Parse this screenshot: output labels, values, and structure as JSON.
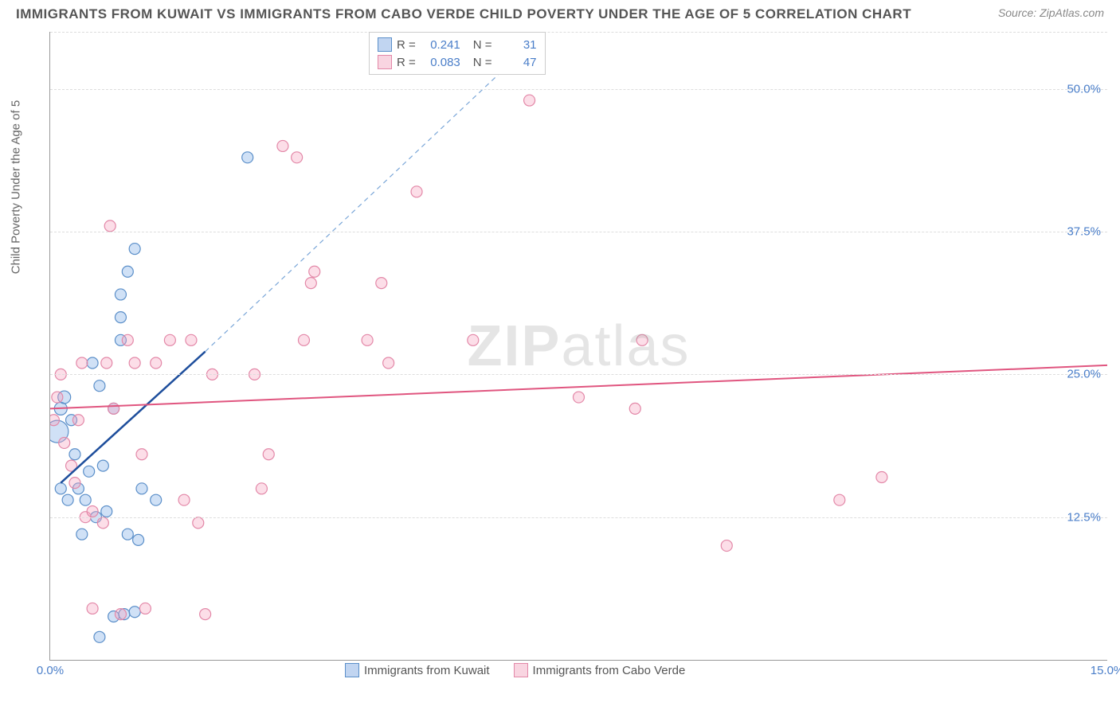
{
  "title": "IMMIGRANTS FROM KUWAIT VS IMMIGRANTS FROM CABO VERDE CHILD POVERTY UNDER THE AGE OF 5 CORRELATION CHART",
  "source": "Source: ZipAtlas.com",
  "y_axis_label": "Child Poverty Under the Age of 5",
  "watermark": {
    "bold": "ZIP",
    "light": "atlas"
  },
  "chart": {
    "type": "scatter",
    "x_range": [
      0,
      15
    ],
    "y_range": [
      0,
      55
    ],
    "x_ticks": [
      {
        "v": 0,
        "l": "0.0%"
      },
      {
        "v": 15,
        "l": "15.0%"
      }
    ],
    "y_ticks": [
      {
        "v": 12.5,
        "l": "12.5%"
      },
      {
        "v": 25,
        "l": "25.0%"
      },
      {
        "v": 37.5,
        "l": "37.5%"
      },
      {
        "v": 50,
        "l": "50.0%"
      }
    ],
    "grid_y": [
      12.5,
      25,
      37.5,
      50,
      55
    ],
    "series": [
      {
        "name": "Immigrants from Kuwait",
        "color_fill": "rgba(120,170,230,0.35)",
        "color_stroke": "#5b8fc9",
        "R": "0.241",
        "N": "31",
        "trend_solid": {
          "x1": 0.15,
          "y1": 15.5,
          "x2": 2.2,
          "y2": 27,
          "color": "#1e4e9c",
          "width": 2.5
        },
        "trend_dash": {
          "x1": 2.2,
          "y1": 27,
          "x2": 7.0,
          "y2": 55,
          "color": "#7aa6d8",
          "width": 1.2
        },
        "points": [
          {
            "x": 0.1,
            "y": 20,
            "r": 14
          },
          {
            "x": 0.15,
            "y": 22,
            "r": 8
          },
          {
            "x": 0.2,
            "y": 23,
            "r": 8
          },
          {
            "x": 0.3,
            "y": 21,
            "r": 7
          },
          {
            "x": 0.25,
            "y": 14,
            "r": 7
          },
          {
            "x": 0.4,
            "y": 15,
            "r": 7
          },
          {
            "x": 0.5,
            "y": 14,
            "r": 7
          },
          {
            "x": 0.6,
            "y": 26,
            "r": 7
          },
          {
            "x": 0.7,
            "y": 24,
            "r": 7
          },
          {
            "x": 0.35,
            "y": 18,
            "r": 7
          },
          {
            "x": 0.55,
            "y": 16.5,
            "r": 7
          },
          {
            "x": 0.8,
            "y": 13,
            "r": 7
          },
          {
            "x": 0.9,
            "y": 22,
            "r": 7
          },
          {
            "x": 1.0,
            "y": 28,
            "r": 7
          },
          {
            "x": 0.45,
            "y": 11,
            "r": 7
          },
          {
            "x": 0.65,
            "y": 12.5,
            "r": 7
          },
          {
            "x": 1.1,
            "y": 11,
            "r": 7
          },
          {
            "x": 1.25,
            "y": 10.5,
            "r": 7
          },
          {
            "x": 1.2,
            "y": 36,
            "r": 7
          },
          {
            "x": 1.3,
            "y": 15,
            "r": 7
          },
          {
            "x": 1.0,
            "y": 32,
            "r": 7
          },
          {
            "x": 1.1,
            "y": 34,
            "r": 7
          },
          {
            "x": 1.0,
            "y": 30,
            "r": 7
          },
          {
            "x": 1.5,
            "y": 14,
            "r": 7
          },
          {
            "x": 0.7,
            "y": 2,
            "r": 7
          },
          {
            "x": 1.05,
            "y": 4,
            "r": 7
          },
          {
            "x": 1.2,
            "y": 4.2,
            "r": 7
          },
          {
            "x": 0.9,
            "y": 3.8,
            "r": 7
          },
          {
            "x": 0.75,
            "y": 17,
            "r": 7
          },
          {
            "x": 0.15,
            "y": 15,
            "r": 7
          },
          {
            "x": 2.8,
            "y": 44,
            "r": 7
          }
        ]
      },
      {
        "name": "Immigrants from Cabo Verde",
        "color_fill": "rgba(245,160,190,0.35)",
        "color_stroke": "#e388a8",
        "R": "0.083",
        "N": "47",
        "trend_solid": {
          "x1": 0,
          "y1": 22,
          "x2": 15,
          "y2": 25.8,
          "color": "#e0557f",
          "width": 2
        },
        "points": [
          {
            "x": 0.1,
            "y": 23,
            "r": 7
          },
          {
            "x": 0.05,
            "y": 21,
            "r": 7
          },
          {
            "x": 0.15,
            "y": 25,
            "r": 7
          },
          {
            "x": 0.2,
            "y": 19,
            "r": 7
          },
          {
            "x": 0.3,
            "y": 17,
            "r": 7
          },
          {
            "x": 0.35,
            "y": 15.5,
            "r": 7
          },
          {
            "x": 0.5,
            "y": 12.5,
            "r": 7
          },
          {
            "x": 0.6,
            "y": 13,
            "r": 7
          },
          {
            "x": 0.45,
            "y": 26,
            "r": 7
          },
          {
            "x": 0.75,
            "y": 12,
            "r": 7
          },
          {
            "x": 0.8,
            "y": 26,
            "r": 7
          },
          {
            "x": 0.85,
            "y": 38,
            "r": 7
          },
          {
            "x": 1.1,
            "y": 28,
            "r": 7
          },
          {
            "x": 1.2,
            "y": 26,
            "r": 7
          },
          {
            "x": 1.3,
            "y": 18,
            "r": 7
          },
          {
            "x": 1.5,
            "y": 26,
            "r": 7
          },
          {
            "x": 1.7,
            "y": 28,
            "r": 7
          },
          {
            "x": 1.9,
            "y": 14,
            "r": 7
          },
          {
            "x": 2.2,
            "y": 4,
            "r": 7
          },
          {
            "x": 2.3,
            "y": 25,
            "r": 7
          },
          {
            "x": 2.0,
            "y": 28,
            "r": 7
          },
          {
            "x": 2.1,
            "y": 12,
            "r": 7
          },
          {
            "x": 2.9,
            "y": 25,
            "r": 7
          },
          {
            "x": 3.0,
            "y": 15,
            "r": 7
          },
          {
            "x": 3.1,
            "y": 18,
            "r": 7
          },
          {
            "x": 3.3,
            "y": 45,
            "r": 7
          },
          {
            "x": 3.6,
            "y": 28,
            "r": 7
          },
          {
            "x": 3.7,
            "y": 33,
            "r": 7
          },
          {
            "x": 3.75,
            "y": 34,
            "r": 7
          },
          {
            "x": 3.5,
            "y": 44,
            "r": 7
          },
          {
            "x": 4.5,
            "y": 28,
            "r": 7
          },
          {
            "x": 4.7,
            "y": 33,
            "r": 7
          },
          {
            "x": 4.8,
            "y": 26,
            "r": 7
          },
          {
            "x": 5.2,
            "y": 41,
            "r": 7
          },
          {
            "x": 6.0,
            "y": 28,
            "r": 7
          },
          {
            "x": 6.8,
            "y": 49,
            "r": 7
          },
          {
            "x": 7.5,
            "y": 23,
            "r": 7
          },
          {
            "x": 8.3,
            "y": 22,
            "r": 7
          },
          {
            "x": 8.4,
            "y": 28,
            "r": 7
          },
          {
            "x": 9.6,
            "y": 10,
            "r": 7
          },
          {
            "x": 11.2,
            "y": 14,
            "r": 7
          },
          {
            "x": 11.8,
            "y": 16,
            "r": 7
          },
          {
            "x": 0.6,
            "y": 4.5,
            "r": 7
          },
          {
            "x": 1.0,
            "y": 4,
            "r": 7
          },
          {
            "x": 0.9,
            "y": 22,
            "r": 7
          },
          {
            "x": 0.4,
            "y": 21,
            "r": 7
          },
          {
            "x": 1.35,
            "y": 4.5,
            "r": 7
          }
        ]
      }
    ]
  }
}
